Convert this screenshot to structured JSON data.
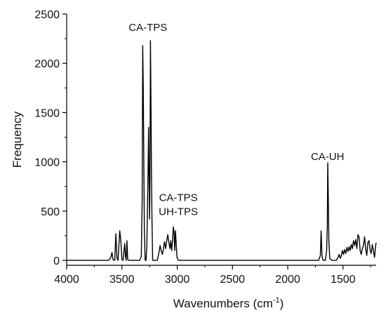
{
  "chart_data": {
    "type": "line",
    "title": "",
    "xlabel": "Wavenumbers (cm",
    "xlabel_superscript": "-1",
    "xlabel_suffix": ")",
    "ylabel": "Frequency",
    "xlim": [
      4000,
      1200
    ],
    "ylim": [
      -50,
      2500
    ],
    "x_reversed": true,
    "x_ticks": [
      4000,
      3500,
      3000,
      2500,
      2000,
      1500
    ],
    "y_ticks": [
      0,
      500,
      1000,
      1500,
      2000,
      2500
    ],
    "grid": false,
    "line_color": "#000000",
    "series": [
      {
        "values": [
          [
            4000,
            0
          ],
          [
            3620,
            0
          ],
          [
            3600,
            30
          ],
          [
            3590,
            80
          ],
          [
            3580,
            5
          ],
          [
            3565,
            0
          ],
          [
            3555,
            270
          ],
          [
            3545,
            20
          ],
          [
            3535,
            0
          ],
          [
            3520,
            300
          ],
          [
            3510,
            200
          ],
          [
            3500,
            5
          ],
          [
            3490,
            0
          ],
          [
            3475,
            170
          ],
          [
            3468,
            40
          ],
          [
            3462,
            0
          ],
          [
            3455,
            200
          ],
          [
            3448,
            10
          ],
          [
            3440,
            0
          ],
          [
            3340,
            0
          ],
          [
            3325,
            40
          ],
          [
            3317,
            600
          ],
          [
            3312,
            2180
          ],
          [
            3307,
            1750
          ],
          [
            3302,
            1000
          ],
          [
            3297,
            280
          ],
          [
            3290,
            0
          ],
          [
            3282,
            0
          ],
          [
            3275,
            150
          ],
          [
            3265,
            800
          ],
          [
            3259,
            1350
          ],
          [
            3255,
            900
          ],
          [
            3250,
            420
          ],
          [
            3246,
            900
          ],
          [
            3242,
            2230
          ],
          [
            3238,
            1700
          ],
          [
            3233,
            900
          ],
          [
            3228,
            400
          ],
          [
            3222,
            0
          ],
          [
            3180,
            0
          ],
          [
            3165,
            80
          ],
          [
            3155,
            150
          ],
          [
            3145,
            100
          ],
          [
            3135,
            60
          ],
          [
            3125,
            110
          ],
          [
            3115,
            190
          ],
          [
            3105,
            120
          ],
          [
            3095,
            200
          ],
          [
            3085,
            260
          ],
          [
            3075,
            180
          ],
          [
            3065,
            120
          ],
          [
            3058,
            200
          ],
          [
            3050,
            100
          ],
          [
            3042,
            200
          ],
          [
            3035,
            340
          ],
          [
            3028,
            280
          ],
          [
            3022,
            100
          ],
          [
            3016,
            300
          ],
          [
            3008,
            150
          ],
          [
            3002,
            30
          ],
          [
            2990,
            0
          ],
          [
            1720,
            0
          ],
          [
            1705,
            50
          ],
          [
            1698,
            300
          ],
          [
            1690,
            40
          ],
          [
            1680,
            0
          ],
          [
            1660,
            0
          ],
          [
            1648,
            100
          ],
          [
            1642,
            350
          ],
          [
            1638,
            990
          ],
          [
            1634,
            700
          ],
          [
            1628,
            200
          ],
          [
            1620,
            20
          ],
          [
            1600,
            0
          ],
          [
            1560,
            0
          ],
          [
            1545,
            30
          ],
          [
            1535,
            60
          ],
          [
            1525,
            20
          ],
          [
            1515,
            50
          ],
          [
            1505,
            100
          ],
          [
            1495,
            60
          ],
          [
            1485,
            110
          ],
          [
            1475,
            70
          ],
          [
            1465,
            130
          ],
          [
            1455,
            90
          ],
          [
            1445,
            140
          ],
          [
            1435,
            100
          ],
          [
            1425,
            160
          ],
          [
            1415,
            120
          ],
          [
            1405,
            200
          ],
          [
            1395,
            150
          ],
          [
            1385,
            210
          ],
          [
            1375,
            120
          ],
          [
            1365,
            260
          ],
          [
            1355,
            240
          ],
          [
            1345,
            100
          ],
          [
            1335,
            60
          ],
          [
            1325,
            120
          ],
          [
            1315,
            150
          ],
          [
            1305,
            240
          ],
          [
            1295,
            120
          ],
          [
            1285,
            50
          ],
          [
            1275,
            180
          ],
          [
            1265,
            200
          ],
          [
            1255,
            110
          ],
          [
            1245,
            70
          ],
          [
            1235,
            160
          ],
          [
            1225,
            100
          ],
          [
            1215,
            30
          ],
          [
            1205,
            150
          ],
          [
            1200,
            180
          ]
        ]
      }
    ],
    "annotations": [
      {
        "text": "CA-TPS",
        "x": 3265,
        "y": 2330
      },
      {
        "text": "CA-TPS",
        "x": 2990,
        "y": 600
      },
      {
        "text": "UH-TPS",
        "x": 2990,
        "y": 460
      },
      {
        "text": "CA-UH",
        "x": 1640,
        "y": 1020
      }
    ]
  }
}
